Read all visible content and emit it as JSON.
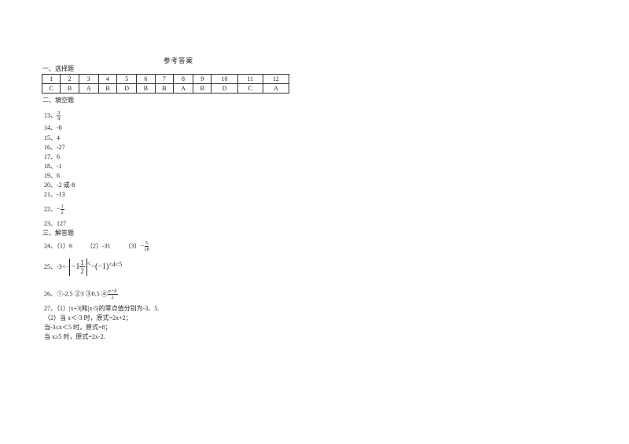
{
  "title": "参考答案",
  "section1": "一、选择题",
  "table": {
    "numbers": [
      "1",
      "2",
      "3",
      "4",
      "5",
      "6",
      "7",
      "8",
      "9",
      "10",
      "11",
      "12"
    ],
    "answers": [
      "C",
      "B",
      "A",
      "B",
      "D",
      "B",
      "B",
      "A",
      "B",
      "D",
      "C",
      "A"
    ]
  },
  "section2": "二、填空题",
  "q13": {
    "label": "13、",
    "num": "3",
    "den": "4"
  },
  "fills": [
    "14、-8",
    "15、4",
    "16、-27",
    "17、6",
    "18、-1",
    "19、6",
    "20、-2 或-8",
    "21、-13"
  ],
  "q22": {
    "label": "22、",
    "sign": "−",
    "num": "1",
    "den": "2"
  },
  "q23": "23、127",
  "section3": "三、解答题",
  "q24": {
    "label": "24、",
    "p1": "（1）6",
    "p2": "（2）-31",
    "p3": "（3）",
    "sign": "−",
    "num": "5",
    "den": "18"
  },
  "q25": {
    "label": "25、",
    "a": "-3<",
    "neg": "−",
    "inner": "−1",
    "num": "1",
    "den": "2",
    "b": "<",
    "c": "−(−1)",
    "d": "<4<5"
  },
  "q26": {
    "label": "26、",
    "text": "①-2.5 ②3 ③0.5 ④",
    "num": "a+b",
    "den": "2"
  },
  "q27": [
    "27、（1）|x+3|和|x-5|的零点值分别为-3、5.",
    "（2）当 x＜-3 时，原式=2x+2；",
    "当-3≤x＜5 时，原式=8；",
    "当 x≥5 时，原式=2x-2."
  ]
}
